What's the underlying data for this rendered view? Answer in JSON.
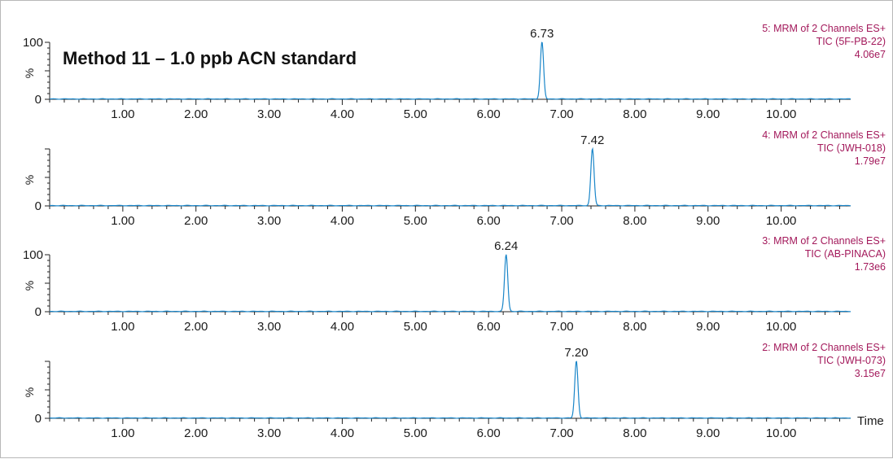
{
  "title": "Method 11 – 1.0 ppb ACN standard",
  "colors": {
    "trace": "#1a86c9",
    "info": "#a3195b",
    "axis": "#222222"
  },
  "x_axis_label": "Time",
  "chart_data": [
    {
      "type": "line",
      "peak_rt": 6.73,
      "peak_label": "6.73",
      "y_max_label": "100",
      "y_min_label": "0",
      "y_unit_label": "%",
      "info": [
        "5: MRM of 2 Channels ES+",
        "TIC (5F-PB-22)",
        "4.06e7"
      ],
      "xlim": [
        0.0,
        10.95
      ],
      "ylim": [
        0,
        100
      ],
      "x_ticks": [
        "1.00",
        "2.00",
        "3.00",
        "4.00",
        "5.00",
        "6.00",
        "7.00",
        "8.00",
        "9.00",
        "10.00"
      ]
    },
    {
      "type": "line",
      "peak_rt": 7.42,
      "peak_label": "7.42",
      "y_max_label": "",
      "y_min_label": "0",
      "y_unit_label": "%",
      "info": [
        "4: MRM of 2 Channels ES+",
        "TIC (JWH-018)",
        "1.79e7"
      ],
      "xlim": [
        0.0,
        10.95
      ],
      "ylim": [
        0,
        100
      ],
      "x_ticks": [
        "1.00",
        "2.00",
        "3.00",
        "4.00",
        "5.00",
        "6.00",
        "7.00",
        "8.00",
        "9.00",
        "10.00"
      ]
    },
    {
      "type": "line",
      "peak_rt": 6.24,
      "peak_label": "6.24",
      "y_max_label": "100",
      "y_min_label": "0",
      "y_unit_label": "%",
      "info": [
        "3: MRM of 2 Channels ES+",
        "TIC (AB-PINACA)",
        "1.73e6"
      ],
      "xlim": [
        0.0,
        10.95
      ],
      "ylim": [
        0,
        100
      ],
      "x_ticks": [
        "1.00",
        "2.00",
        "3.00",
        "4.00",
        "5.00",
        "6.00",
        "7.00",
        "8.00",
        "9.00",
        "10.00"
      ]
    },
    {
      "type": "line",
      "peak_rt": 7.2,
      "peak_label": "7.20",
      "y_max_label": "",
      "y_min_label": "0",
      "y_unit_label": "%",
      "info": [
        "2: MRM of 2 Channels ES+",
        "TIC (JWH-073)",
        "3.15e7"
      ],
      "xlim": [
        0.0,
        10.95
      ],
      "ylim": [
        0,
        100
      ],
      "x_ticks": [
        "1.00",
        "2.00",
        "3.00",
        "4.00",
        "5.00",
        "6.00",
        "7.00",
        "8.00",
        "9.00",
        "10.00"
      ]
    }
  ]
}
